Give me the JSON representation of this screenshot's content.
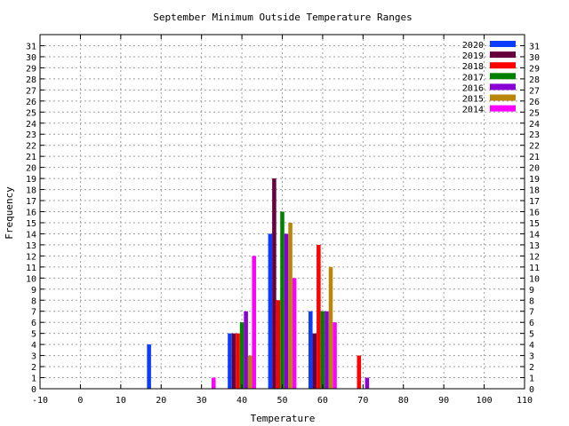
{
  "chart_data": {
    "type": "bar",
    "title": "September Minimum Outside Temperature Ranges",
    "xlabel": "Temperature",
    "ylabel": "Frequency",
    "xlim": [
      -10,
      110
    ],
    "ylim": [
      0,
      32
    ],
    "xticks": [
      -10,
      0,
      10,
      20,
      30,
      40,
      50,
      60,
      70,
      80,
      90,
      100,
      110
    ],
    "yticks": [
      0,
      1,
      2,
      3,
      4,
      5,
      6,
      7,
      8,
      9,
      10,
      11,
      12,
      13,
      14,
      15,
      16,
      17,
      18,
      19,
      20,
      21,
      22,
      23,
      24,
      25,
      26,
      27,
      28,
      29,
      30,
      31
    ],
    "grid": true,
    "legend_position": "top-right",
    "bin_width": 10,
    "bins": [
      20,
      30,
      40,
      50,
      60,
      70
    ],
    "series": [
      {
        "name": "2020",
        "color": "#0b3cff",
        "values": [
          4,
          0,
          5,
          14,
          7,
          0
        ]
      },
      {
        "name": "2019",
        "color": "#66003d",
        "values": [
          0,
          0,
          5,
          19,
          5,
          0
        ]
      },
      {
        "name": "2018",
        "color": "#ff0000",
        "values": [
          0,
          0,
          5,
          8,
          13,
          3
        ]
      },
      {
        "name": "2017",
        "color": "#008000",
        "values": [
          0,
          0,
          6,
          16,
          7,
          0
        ]
      },
      {
        "name": "2016",
        "color": "#8a00d4",
        "values": [
          0,
          0,
          7,
          14,
          7,
          1
        ]
      },
      {
        "name": "2015",
        "color": "#b8860b",
        "values": [
          0,
          0,
          3,
          15,
          11,
          0
        ]
      },
      {
        "name": "2014",
        "color": "#ff00ff",
        "values": [
          0,
          1,
          12,
          10,
          6,
          0
        ]
      }
    ]
  }
}
